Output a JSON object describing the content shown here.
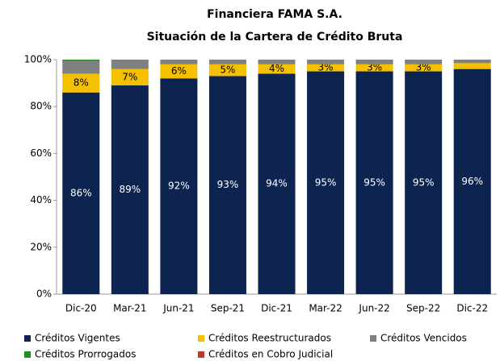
{
  "chart_data": {
    "type": "stacked_bar",
    "title": "Financiera FAMA S.A.",
    "subtitle": "Situación de la Cartera de Crédito Bruta",
    "categories": [
      "Dic-20",
      "Mar-21",
      "Jun-21",
      "Sep-21",
      "Dic-21",
      "Mar-22",
      "Jun-22",
      "Sep-22",
      "Dic-22"
    ],
    "series": [
      {
        "name": "Créditos Vigentes",
        "color": "#0d2451",
        "values": [
          86,
          89,
          92,
          93,
          94,
          95,
          95,
          95,
          96
        ],
        "value_labels": [
          "86%",
          "89%",
          "92%",
          "93%",
          "94%",
          "95%",
          "95%",
          "95%",
          "96%"
        ]
      },
      {
        "name": "Créditos Reestructurados",
        "color": "#f5c000",
        "values": [
          8,
          7,
          6,
          5,
          4,
          3,
          3,
          3,
          2.5
        ],
        "value_labels": [
          "8%",
          "7%",
          "6%",
          "5%",
          "4%",
          "3%",
          "3%",
          "3%",
          null
        ]
      },
      {
        "name": "Créditos Vencidos",
        "color": "#808080",
        "values": [
          5.5,
          4,
          2,
          2,
          2,
          2,
          2,
          2,
          1.5
        ]
      },
      {
        "name": "Créditos Prorrogados",
        "color": "#1e8f1e",
        "values": [
          0.5,
          0,
          0,
          0,
          0,
          0,
          0,
          0,
          0
        ]
      },
      {
        "name": "Créditos en Cobro Judicial",
        "color": "#c0392b",
        "values": [
          0,
          0,
          0,
          0,
          0,
          0,
          0,
          0,
          0
        ]
      }
    ],
    "ylim": [
      0,
      100
    ],
    "yticks": [
      {
        "value": 0,
        "label": "0%"
      },
      {
        "value": 20,
        "label": "20%"
      },
      {
        "value": 40,
        "label": "40%"
      },
      {
        "value": 60,
        "label": "60%"
      },
      {
        "value": 80,
        "label": "80%"
      },
      {
        "value": 100,
        "label": "100%"
      }
    ],
    "grid": false,
    "legend": "bottom"
  }
}
